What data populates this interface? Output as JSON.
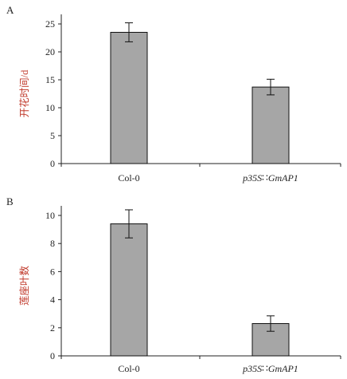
{
  "chart_data": [
    {
      "type": "bar",
      "panel_label": "A",
      "categories": [
        "Col-0",
        "p35S∷GmAP1"
      ],
      "values": [
        23.5,
        13.7
      ],
      "errors": [
        1.7,
        1.4
      ],
      "ylabel": "开花时间/d",
      "ylim": [
        0,
        25
      ],
      "yticks": [
        0,
        5,
        10,
        15,
        20,
        25
      ],
      "grid": false,
      "colors": {
        "bar": "#a6a6a6",
        "bar_edge": "#111111",
        "axis": "#222222",
        "ylabel": "#c0392b"
      }
    },
    {
      "type": "bar",
      "panel_label": "B",
      "categories": [
        "Col-0",
        "p35S∷GmAP1"
      ],
      "values": [
        9.4,
        2.3
      ],
      "errors": [
        1.0,
        0.55
      ],
      "ylabel": "莲座叶数",
      "ylim": [
        0,
        10
      ],
      "yticks": [
        0,
        2,
        4,
        6,
        8,
        10
      ],
      "grid": false,
      "colors": {
        "bar": "#a6a6a6",
        "bar_edge": "#111111",
        "axis": "#222222",
        "ylabel": "#c0392b"
      }
    }
  ]
}
